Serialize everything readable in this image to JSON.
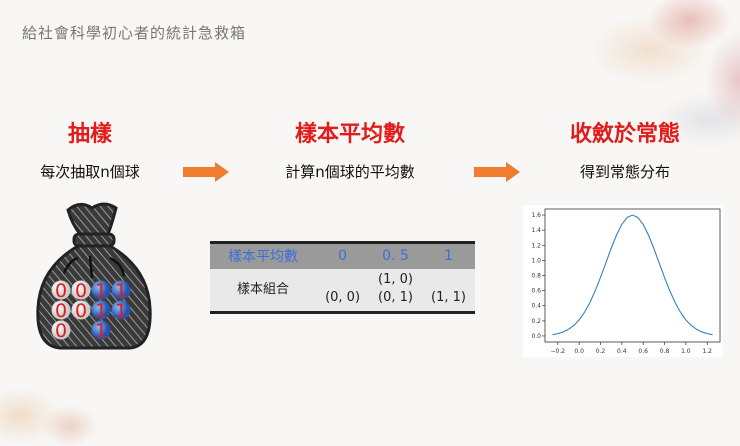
{
  "title": "給社會科學初心者的統計急救箱",
  "steps": [
    {
      "heading": "抽樣",
      "text": "每次抽取n個球"
    },
    {
      "heading": "樣本平均數",
      "text": "計算n個球的平均數"
    },
    {
      "heading": "收斂於常態",
      "text": "得到常態分布"
    }
  ],
  "bag": {
    "balls": [
      [
        "0",
        "0",
        "1",
        "1"
      ],
      [
        "0",
        "0",
        "1",
        "1"
      ],
      [
        "0",
        "",
        "1",
        ""
      ]
    ]
  },
  "table": {
    "header": [
      "樣本平均數",
      "0",
      "0. 5",
      "1"
    ],
    "row_label": "樣本組合",
    "cells": [
      [
        "(0, 0)"
      ],
      [
        "(1, 0)",
        "(0, 1)"
      ],
      [
        "(1, 1)"
      ]
    ]
  },
  "colors": {
    "heading": "#e21b1b",
    "arrow": "#ee7d2f",
    "table_header_text": "#3b6fd8",
    "curve": "#3a7fba"
  },
  "chart_data": {
    "type": "line",
    "xticks": [
      "−0.2",
      "0.0",
      "0.2",
      "0.4",
      "0.6",
      "0.8",
      "1.0",
      "1.2"
    ],
    "yticks": [
      "0.0",
      "0.2",
      "0.4",
      "0.6",
      "0.8",
      "1.0",
      "1.2",
      "1.4",
      "1.6"
    ],
    "xlim": [
      -0.32,
      1.32
    ],
    "ylim": [
      -0.08,
      1.68
    ],
    "x": [
      -0.25,
      -0.2,
      -0.15,
      -0.1,
      -0.05,
      0,
      0.05,
      0.1,
      0.15,
      0.2,
      0.25,
      0.3,
      0.35,
      0.4,
      0.45,
      0.5,
      0.55,
      0.6,
      0.65,
      0.7,
      0.75,
      0.8,
      0.85,
      0.9,
      0.95,
      1.0,
      1.05,
      1.1,
      1.15,
      1.2,
      1.25
    ],
    "y": [
      0.017,
      0.031,
      0.053,
      0.088,
      0.139,
      0.213,
      0.312,
      0.44,
      0.596,
      0.774,
      0.966,
      1.159,
      1.334,
      1.476,
      1.568,
      1.6,
      1.568,
      1.476,
      1.334,
      1.159,
      0.966,
      0.774,
      0.596,
      0.44,
      0.312,
      0.213,
      0.139,
      0.088,
      0.053,
      0.031,
      0.017
    ]
  }
}
